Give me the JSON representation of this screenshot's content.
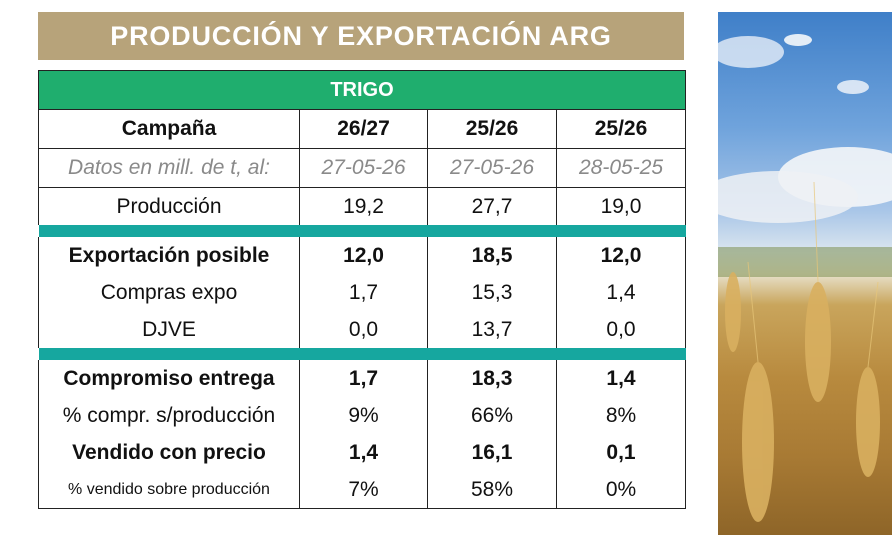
{
  "title": "PRODUCCIÓN Y EXPORTACIÓN ARG",
  "table": {
    "section": "TRIGO",
    "header": [
      "Campaña",
      "26/27",
      "25/26",
      "25/26"
    ],
    "dates": [
      "Datos en mill. de t, al:",
      "27-05-26",
      "27-05-26",
      "28-05-25"
    ],
    "rows": [
      {
        "label": "Producción",
        "values": [
          "19,2",
          "27,7",
          "19,0"
        ]
      },
      {
        "label": "Exportación posible",
        "values": [
          "12,0",
          "18,5",
          "12,0"
        ]
      },
      {
        "label": "Compras expo",
        "values": [
          "1,7",
          "15,3",
          "1,4"
        ]
      },
      {
        "label": "DJVE",
        "values": [
          "0,0",
          "13,7",
          "0,0"
        ]
      },
      {
        "label": "Compromiso entrega",
        "values": [
          "1,7",
          "18,3",
          "1,4"
        ]
      },
      {
        "label": "% compr. s/producción",
        "values": [
          "9%",
          "66%",
          "8%"
        ]
      },
      {
        "label": "Vendido con precio",
        "values": [
          "1,4",
          "16,1",
          "0,1"
        ]
      },
      {
        "label": "% vendido sobre producción",
        "values": [
          "7%",
          "58%",
          "0%"
        ]
      }
    ]
  },
  "colors": {
    "banner": "#b7a37a",
    "section_header": "#1fae6e",
    "separator": "#16a79f"
  },
  "image": {
    "icon": "wheat-field-photo"
  }
}
